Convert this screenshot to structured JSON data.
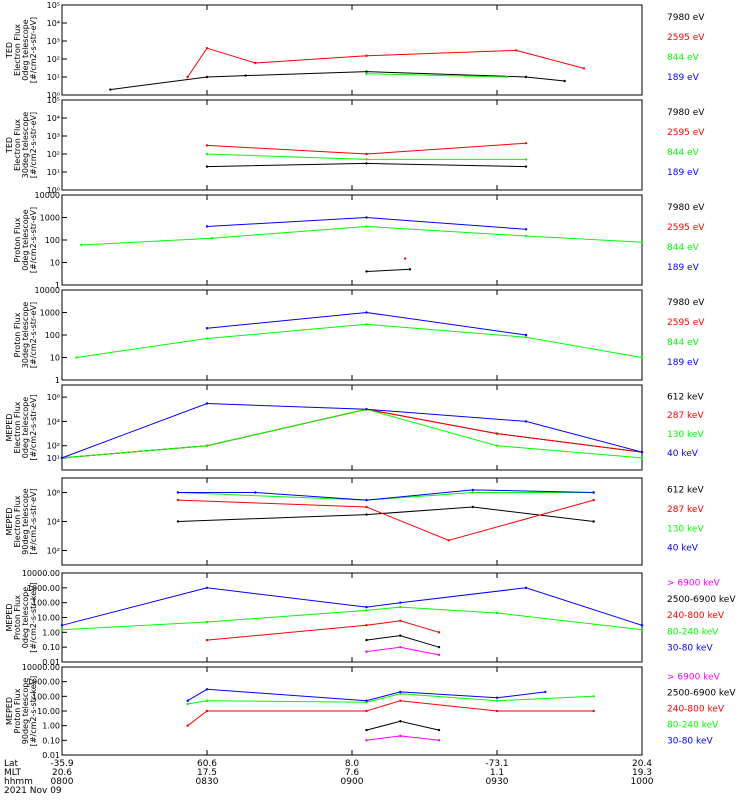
{
  "chart_data": [
    {
      "type": "line",
      "ylabel": [
        "TED",
        "Electron Flux",
        "0deg telescope",
        "[#/cm2-s-str-eV]"
      ],
      "ylog": true,
      "ylim": [
        1,
        100000
      ],
      "ytick_labels": [
        "10⁰",
        "10¹",
        "10²",
        "10³",
        "10⁴",
        "10⁵"
      ],
      "yticks": [
        1,
        10,
        100,
        1000,
        10000,
        100000
      ],
      "series": [
        {
          "name": "7980 eV",
          "color": "#000000",
          "values": [
            [
              810,
              2
            ],
            [
              830,
              10
            ],
            [
              838,
              12
            ],
            [
              903,
              20
            ],
            [
              936,
              10
            ],
            [
              944,
              6
            ]
          ]
        },
        {
          "name": "2595 eV",
          "color": "#ff0000",
          "values": [
            [
              826,
              10
            ],
            [
              830,
              400
            ],
            [
              840,
              60
            ],
            [
              903,
              150
            ],
            [
              934,
              300
            ],
            [
              948,
              30
            ]
          ]
        },
        {
          "name": "844 eV",
          "color": "#00ff00",
          "values": [
            [
              903,
              15
            ],
            [
              932,
              10
            ]
          ]
        },
        {
          "name": "189 eV",
          "color": "#0000ff",
          "values": []
        }
      ]
    },
    {
      "type": "line",
      "ylabel": [
        "TED",
        "Electron Flux",
        "30deg telescope",
        "[#/cm2-s-str-eV]"
      ],
      "ylog": true,
      "ylim": [
        1,
        100000
      ],
      "ytick_labels": [
        "10⁰",
        "10¹",
        "10²",
        "10³",
        "10⁴",
        "10⁵"
      ],
      "yticks": [
        1,
        10,
        100,
        1000,
        10000,
        100000
      ],
      "series": [
        {
          "name": "7980 eV",
          "color": "#000000",
          "values": [
            [
              830,
              20
            ],
            [
              903,
              30
            ],
            [
              936,
              20
            ]
          ]
        },
        {
          "name": "2595 eV",
          "color": "#ff0000",
          "values": [
            [
              830,
              300
            ],
            [
              903,
              100
            ],
            [
              936,
              400
            ]
          ]
        },
        {
          "name": "844 eV",
          "color": "#00ff00",
          "values": [
            [
              830,
              100
            ],
            [
              903,
              50
            ],
            [
              936,
              50
            ]
          ]
        },
        {
          "name": "189 eV",
          "color": "#0000ff",
          "values": []
        }
      ]
    },
    {
      "type": "line",
      "ylabel": [
        "Proton Flux",
        "0deg telescope",
        "[#/cm2-s-str-eV]"
      ],
      "ylog": true,
      "ylim": [
        1,
        10000
      ],
      "ytick_labels": [
        "1",
        "10",
        "100",
        "1000",
        "10000"
      ],
      "yticks": [
        1,
        10,
        100,
        1000,
        10000
      ],
      "series": [
        {
          "name": "7980 eV",
          "color": "#000000",
          "values": [
            [
              903,
              4
            ],
            [
              912,
              5
            ]
          ]
        },
        {
          "name": "2595 eV",
          "color": "#ff0000",
          "values": [
            [
              911,
              15
            ]
          ]
        },
        {
          "name": "844 eV",
          "color": "#00ff00",
          "values": [
            [
              804,
              60
            ],
            [
              831,
              120
            ],
            [
              903,
              400
            ],
            [
              936,
              150
            ],
            [
              1000,
              80
            ]
          ]
        },
        {
          "name": "189 eV",
          "color": "#0000ff",
          "values": [
            [
              830,
              400
            ],
            [
              903,
              1000
            ],
            [
              936,
              300
            ]
          ]
        }
      ]
    },
    {
      "type": "line",
      "ylabel": [
        "Proton Flux",
        "30deg telescope",
        "[#/cm2-s-str-eV]"
      ],
      "ylog": true,
      "ylim": [
        1,
        10000
      ],
      "ytick_labels": [
        "1",
        "10",
        "100",
        "1000",
        "10000"
      ],
      "yticks": [
        1,
        10,
        100,
        1000,
        10000
      ],
      "series": [
        {
          "name": "7980 eV",
          "color": "#000000",
          "values": []
        },
        {
          "name": "2595 eV",
          "color": "#ff0000",
          "values": []
        },
        {
          "name": "844 eV",
          "color": "#00ff00",
          "values": [
            [
              803,
              10
            ],
            [
              830,
              70
            ],
            [
              903,
              300
            ],
            [
              936,
              80
            ],
            [
              1000,
              10
            ]
          ]
        },
        {
          "name": "189 eV",
          "color": "#0000ff",
          "values": [
            [
              830,
              200
            ],
            [
              903,
              1000
            ],
            [
              936,
              100
            ]
          ]
        }
      ]
    },
    {
      "type": "line",
      "ylabel": [
        "MEPED",
        "Electron Flux",
        "0deg telescope",
        "[#/cm2-s-str-eV]"
      ],
      "ylog": true,
      "ylim": [
        1,
        10000000
      ],
      "ytick_labels": [
        "10¹",
        "10²",
        "10⁴",
        "10⁶"
      ],
      "yticks": [
        10,
        100,
        10000,
        1000000
      ],
      "series": [
        {
          "name": "612 keV",
          "color": "#000000",
          "values": [
            [
              800,
              10
            ],
            [
              830,
              100
            ],
            [
              903,
              100000
            ],
            [
              930,
              1000
            ],
            [
              1000,
              30
            ]
          ]
        },
        {
          "name": "287 keV",
          "color": "#ff0000",
          "values": [
            [
              800,
              10
            ],
            [
              830,
              100
            ],
            [
              903,
              100000
            ],
            [
              930,
              1000
            ],
            [
              1000,
              30
            ]
          ]
        },
        {
          "name": "130 keV",
          "color": "#00ff00",
          "values": [
            [
              800,
              10
            ],
            [
              830,
              100
            ],
            [
              903,
              100000
            ],
            [
              930,
              100
            ],
            [
              1000,
              10
            ]
          ]
        },
        {
          "name": "40 keV",
          "color": "#0000ff",
          "values": [
            [
              800,
              10
            ],
            [
              830,
              300000
            ],
            [
              903,
              100000
            ],
            [
              936,
              10000
            ],
            [
              1000,
              30
            ]
          ]
        }
      ]
    },
    {
      "type": "line",
      "ylabel": [
        "MEPED",
        "Electron Flux",
        "90deg telescope",
        "[#/cm2-s-str-eV]"
      ],
      "ylog": true,
      "ylim": [
        10,
        10000000
      ],
      "ytick_labels": [
        "10²",
        "10⁴",
        "10⁶"
      ],
      "yticks": [
        100,
        10000,
        1000000
      ],
      "series": [
        {
          "name": "612 keV",
          "color": "#000000",
          "values": [
            [
              824,
              10000
            ],
            [
              903,
              30000
            ],
            [
              925,
              100000
            ],
            [
              950,
              10000
            ]
          ]
        },
        {
          "name": "287 keV",
          "color": "#ff0000",
          "values": [
            [
              824,
              300000
            ],
            [
              903,
              100000
            ],
            [
              920,
              500
            ],
            [
              950,
              300000
            ]
          ]
        },
        {
          "name": "130 keV",
          "color": "#00ff00",
          "values": [
            [
              824,
              1000000
            ],
            [
              903,
              300000
            ],
            [
              925,
              1000000
            ],
            [
              950,
              1000000
            ]
          ]
        },
        {
          "name": "40 keV",
          "color": "#0000ff",
          "values": [
            [
              824,
              1000000
            ],
            [
              840,
              1000000
            ],
            [
              903,
              300000
            ],
            [
              925,
              1500000
            ],
            [
              950,
              1000000
            ]
          ]
        }
      ]
    },
    {
      "type": "line",
      "ylabel": [
        "MEPED",
        "Proton Flux",
        "0deg telescope",
        "[#/cm2-s-str-keV]"
      ],
      "ylog": true,
      "ylim": [
        0.01,
        10000
      ],
      "ytick_labels": [
        "0.01",
        "0.10",
        "1.00",
        "10.00",
        "100.00",
        "1000.00",
        "10000.00"
      ],
      "yticks": [
        0.01,
        0.1,
        1,
        10,
        100,
        1000,
        10000
      ],
      "series": [
        {
          "name": "> 6900 keV",
          "color": "#ff00ff",
          "values": [
            [
              903,
              0.05
            ],
            [
              910,
              0.1
            ],
            [
              918,
              0.03
            ]
          ]
        },
        {
          "name": "2500-6900 keV",
          "color": "#000000",
          "values": [
            [
              903,
              0.3
            ],
            [
              910,
              0.6
            ],
            [
              918,
              0.1
            ]
          ]
        },
        {
          "name": "240-800 keV",
          "color": "#ff0000",
          "values": [
            [
              830,
              0.3
            ],
            [
              903,
              3
            ],
            [
              910,
              6
            ],
            [
              918,
              1
            ]
          ]
        },
        {
          "name": "80-240 keV",
          "color": "#00ff00",
          "values": [
            [
              800,
              1.5
            ],
            [
              830,
              5
            ],
            [
              903,
              30
            ],
            [
              910,
              50
            ],
            [
              930,
              20
            ],
            [
              1000,
              1.5
            ]
          ]
        },
        {
          "name": "30-80 keV",
          "color": "#0000ff",
          "values": [
            [
              800,
              3
            ],
            [
              830,
              1000
            ],
            [
              903,
              50
            ],
            [
              910,
              100
            ],
            [
              936,
              1000
            ],
            [
              1000,
              3
            ]
          ]
        }
      ]
    },
    {
      "type": "line",
      "ylabel": [
        "MEPED",
        "Proton Flux",
        "90deg telescope",
        "[#/cm2-s-str-keV]"
      ],
      "ylog": true,
      "ylim": [
        0.01,
        10000
      ],
      "ytick_labels": [
        "0.01",
        "0.10",
        "1.00",
        "10.00",
        "100.00",
        "1000.00",
        "10000.00"
      ],
      "yticks": [
        0.01,
        0.1,
        1,
        10,
        100,
        1000,
        10000
      ],
      "series": [
        {
          "name": "> 6900 keV",
          "color": "#ff00ff",
          "values": [
            [
              903,
              0.1
            ],
            [
              910,
              0.2
            ],
            [
              918,
              0.1
            ]
          ]
        },
        {
          "name": "2500-6900 keV",
          "color": "#000000",
          "values": [
            [
              903,
              0.5
            ],
            [
              910,
              2
            ],
            [
              918,
              0.5
            ]
          ]
        },
        {
          "name": "240-800 keV",
          "color": "#ff0000",
          "values": [
            [
              826,
              1
            ],
            [
              830,
              10
            ],
            [
              903,
              10
            ],
            [
              910,
              50
            ],
            [
              930,
              10
            ],
            [
              950,
              10
            ]
          ]
        },
        {
          "name": "80-240 keV",
          "color": "#00ff00",
          "values": [
            [
              826,
              30
            ],
            [
              830,
              50
            ],
            [
              903,
              40
            ],
            [
              910,
              150
            ],
            [
              930,
              50
            ],
            [
              950,
              100
            ]
          ]
        },
        {
          "name": "30-80 keV",
          "color": "#0000ff",
          "values": [
            [
              826,
              50
            ],
            [
              830,
              300
            ],
            [
              903,
              50
            ],
            [
              910,
              200
            ],
            [
              930,
              80
            ],
            [
              940,
              200
            ]
          ]
        }
      ]
    }
  ],
  "x_axis": {
    "row_labels": [
      "Lat",
      "MLT",
      "hhmm"
    ],
    "ticks": [
      {
        "lat": "-35.9",
        "mlt": "20.6",
        "hhmm": "0800"
      },
      {
        "lat": "60.6",
        "mlt": "17.5",
        "hhmm": "0830"
      },
      {
        "lat": "8.0",
        "mlt": "7.6",
        "hhmm": "0900"
      },
      {
        "lat": "-73.1",
        "mlt": "1.1",
        "hhmm": "0930"
      },
      {
        "lat": "20.4",
        "mlt": "19.3",
        "hhmm": "1000"
      }
    ],
    "date": "2021 Nov 09"
  }
}
